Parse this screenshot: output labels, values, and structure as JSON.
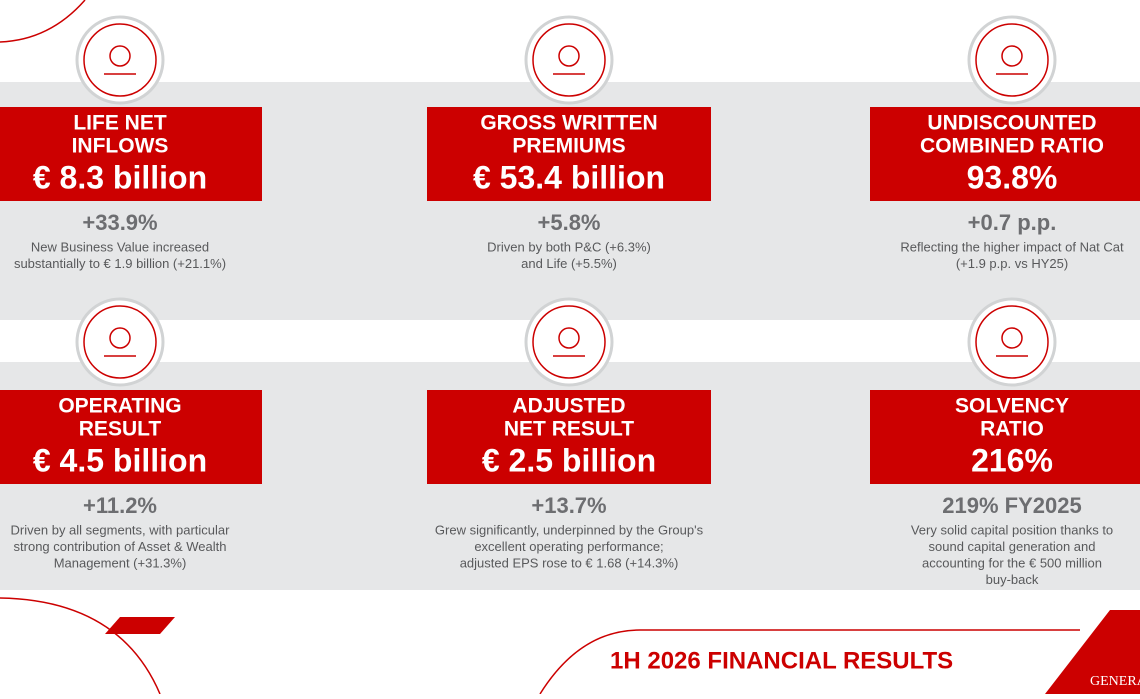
{
  "cards": [
    {
      "title": [
        "LIFE NET",
        "INFLOWS"
      ],
      "value": "€ 8.3 billion",
      "delta": "+33.9%",
      "description": [
        "New Business Value increased",
        "substantially to € 1.9 billion (+21.1%)"
      ]
    },
    {
      "title": [
        "GROSS WRITTEN",
        "PREMIUMS"
      ],
      "value": "€ 53.4 billion",
      "delta": "+5.8%",
      "description": [
        "Driven by both P&C (+6.3%)",
        "and Life (+5.5%)"
      ]
    },
    {
      "title": [
        "UNDISCOUNTED",
        "COMBINED RATIO"
      ],
      "value": "93.8%",
      "delta": "+0.7 p.p.",
      "description": [
        "Reflecting the higher impact of Nat Cat",
        "(+1.9 p.p. vs HY25)"
      ]
    },
    {
      "title": [
        "OPERATING",
        "RESULT"
      ],
      "value": "€ 4.5 billion",
      "delta": "+11.2%",
      "description": [
        "Driven by all segments, with particular",
        "strong contribution of Asset & Wealth",
        "Management (+31.3%)"
      ]
    },
    {
      "title": [
        "ADJUSTED",
        "NET RESULT"
      ],
      "value": "€ 2.5 billion",
      "delta": "+13.7%",
      "description": [
        "Grew significantly, underpinned by the Group's",
        "excellent operating performance;",
        "adjusted EPS rose to € 1.68 (+14.3%)"
      ]
    },
    {
      "title": [
        "SOLVENCY",
        "RATIO"
      ],
      "value": "216%",
      "delta": "219% FY2025",
      "description": [
        "Very solid capital position thanks to",
        "sound capital generation and",
        "accounting for the € 500 million",
        "buy-back"
      ]
    }
  ],
  "footer": {
    "title": "1H 2026 FINANCIAL RESULTS",
    "logo": "GENERALI"
  }
}
